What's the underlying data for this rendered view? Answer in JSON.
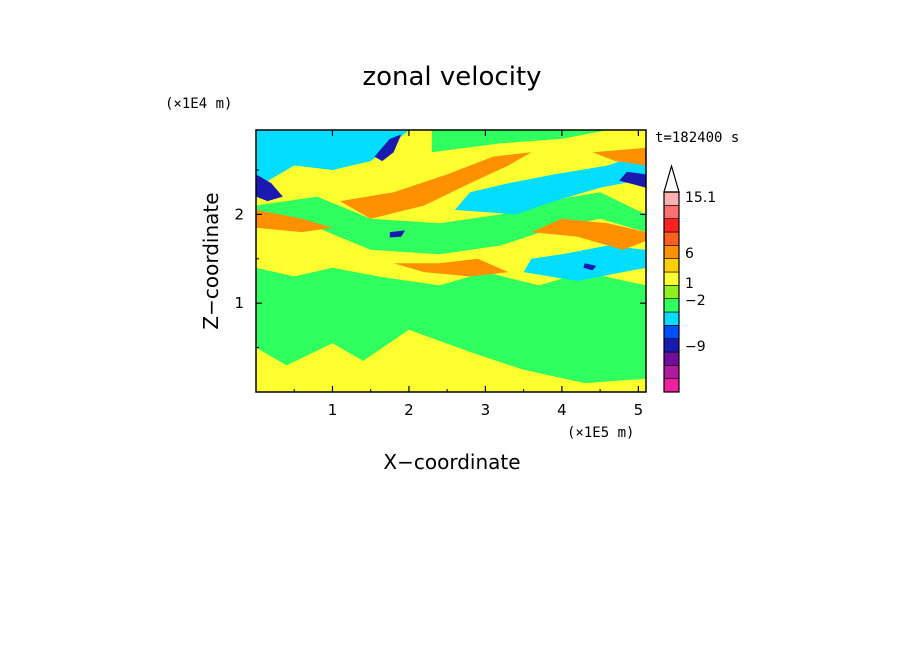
{
  "chart_data": {
    "type": "heatmap",
    "title": "zonal velocity",
    "xlabel": "X−coordinate",
    "ylabel": "Z−coordinate",
    "x_unit": "(×1E5 m)",
    "y_unit": "(×1E4 m)",
    "time_label": "t=182400 s",
    "xlim": [
      0,
      5.1
    ],
    "ylim": [
      0,
      2.95
    ],
    "x_ticks": [
      1,
      2,
      3,
      4,
      5
    ],
    "y_ticks": [
      1,
      2
    ],
    "grid": false,
    "colorbar": {
      "placement": "right",
      "tick_labels": [
        "15.1",
        "6",
        "1",
        "−2",
        "−9"
      ],
      "colors": [
        "#f020a0",
        "#b01aa0",
        "#70109a",
        "#1a1ab0",
        "#0050ff",
        "#00ddff",
        "#30ff60",
        "#90f020",
        "#ffff30",
        "#ffd000",
        "#ff9000",
        "#ff6020",
        "#ff2020",
        "#ff7070",
        "#ffb0b0"
      ]
    },
    "field_colors": {
      "dark_blue": "#1a1ab0",
      "cyan": "#00ddff",
      "green": "#30ff60",
      "yellow": "#ffff30",
      "orange": "#ff9000"
    },
    "bands": [
      {
        "color": "yellow",
        "poly": [
          [
            0,
            0
          ],
          [
            5.1,
            0
          ],
          [
            5.1,
            2.95
          ],
          [
            0,
            2.95
          ]
        ]
      },
      {
        "color": "green",
        "poly": [
          [
            0,
            0.5
          ],
          [
            0.4,
            0.3
          ],
          [
            1.0,
            0.55
          ],
          [
            1.4,
            0.35
          ],
          [
            2.0,
            0.7
          ],
          [
            2.8,
            0.45
          ],
          [
            3.5,
            0.25
          ],
          [
            4.3,
            0.1
          ],
          [
            5.1,
            0.15
          ],
          [
            5.1,
            1.2
          ],
          [
            4.3,
            1.35
          ],
          [
            3.7,
            1.2
          ],
          [
            3.0,
            1.35
          ],
          [
            2.4,
            1.2
          ],
          [
            1.6,
            1.3
          ],
          [
            1.0,
            1.4
          ],
          [
            0.5,
            1.3
          ],
          [
            0,
            1.4
          ]
        ]
      },
      {
        "color": "green",
        "poly": [
          [
            0,
            1.9
          ],
          [
            0.8,
            1.85
          ],
          [
            1.5,
            1.6
          ],
          [
            2.4,
            1.55
          ],
          [
            3.2,
            1.65
          ],
          [
            3.9,
            1.85
          ],
          [
            4.5,
            1.95
          ],
          [
            5.1,
            1.8
          ],
          [
            5.1,
            2.0
          ],
          [
            4.5,
            2.25
          ],
          [
            3.8,
            2.15
          ],
          [
            3.2,
            2.0
          ],
          [
            2.4,
            1.9
          ],
          [
            1.5,
            1.95
          ],
          [
            0.8,
            2.2
          ],
          [
            0,
            2.1
          ]
        ]
      },
      {
        "color": "cyan",
        "poly": [
          [
            0,
            2.3
          ],
          [
            0.5,
            2.55
          ],
          [
            1.0,
            2.5
          ],
          [
            1.5,
            2.6
          ],
          [
            1.8,
            2.8
          ],
          [
            2.0,
            2.95
          ],
          [
            0,
            2.95
          ]
        ]
      },
      {
        "color": "cyan",
        "poly": [
          [
            2.6,
            2.05
          ],
          [
            3.4,
            2.0
          ],
          [
            3.9,
            2.15
          ],
          [
            4.5,
            2.3
          ],
          [
            5.1,
            2.4
          ],
          [
            5.1,
            2.7
          ],
          [
            4.6,
            2.55
          ],
          [
            3.9,
            2.45
          ],
          [
            3.3,
            2.35
          ],
          [
            2.8,
            2.25
          ]
        ]
      },
      {
        "color": "cyan",
        "poly": [
          [
            3.5,
            1.35
          ],
          [
            4.2,
            1.25
          ],
          [
            4.8,
            1.35
          ],
          [
            5.1,
            1.4
          ],
          [
            5.1,
            1.6
          ],
          [
            4.6,
            1.65
          ],
          [
            4.0,
            1.55
          ],
          [
            3.6,
            1.5
          ]
        ]
      },
      {
        "color": "green",
        "poly": [
          [
            2.3,
            2.7
          ],
          [
            3.2,
            2.8
          ],
          [
            4.0,
            2.85
          ],
          [
            4.6,
            2.95
          ],
          [
            2.3,
            2.95
          ]
        ]
      },
      {
        "color": "orange",
        "poly": [
          [
            1.1,
            2.15
          ],
          [
            1.8,
            2.25
          ],
          [
            2.5,
            2.45
          ],
          [
            3.1,
            2.65
          ],
          [
            3.6,
            2.7
          ],
          [
            3.3,
            2.55
          ],
          [
            2.8,
            2.35
          ],
          [
            2.2,
            2.1
          ],
          [
            1.5,
            1.95
          ]
        ]
      },
      {
        "color": "orange",
        "poly": [
          [
            0,
            2.05
          ],
          [
            0.6,
            1.95
          ],
          [
            1.0,
            1.85
          ],
          [
            0.6,
            1.8
          ],
          [
            0,
            1.85
          ]
        ]
      },
      {
        "color": "orange",
        "poly": [
          [
            3.6,
            1.8
          ],
          [
            4.2,
            1.75
          ],
          [
            4.8,
            1.6
          ],
          [
            5.1,
            1.7
          ],
          [
            5.1,
            1.8
          ],
          [
            4.6,
            1.9
          ],
          [
            4.0,
            1.95
          ]
        ]
      },
      {
        "color": "orange",
        "poly": [
          [
            1.8,
            1.45
          ],
          [
            2.4,
            1.45
          ],
          [
            2.9,
            1.5
          ],
          [
            3.3,
            1.35
          ],
          [
            2.8,
            1.3
          ],
          [
            2.2,
            1.35
          ]
        ]
      },
      {
        "color": "orange",
        "poly": [
          [
            4.4,
            2.7
          ],
          [
            5.1,
            2.75
          ],
          [
            5.1,
            2.55
          ],
          [
            4.7,
            2.6
          ]
        ]
      },
      {
        "color": "dark_blue",
        "poly": [
          [
            0,
            2.45
          ],
          [
            0.2,
            2.35
          ],
          [
            0.35,
            2.2
          ],
          [
            0.15,
            2.15
          ],
          [
            0,
            2.2
          ]
        ]
      },
      {
        "color": "dark_blue",
        "poly": [
          [
            1.55,
            2.65
          ],
          [
            1.75,
            2.85
          ],
          [
            1.9,
            2.9
          ],
          [
            1.8,
            2.7
          ],
          [
            1.65,
            2.6
          ]
        ]
      },
      {
        "color": "dark_blue",
        "poly": [
          [
            4.75,
            2.38
          ],
          [
            5.1,
            2.3
          ],
          [
            5.1,
            2.45
          ],
          [
            4.85,
            2.48
          ]
        ]
      },
      {
        "color": "dark_blue",
        "poly": [
          [
            1.75,
            1.8
          ],
          [
            1.95,
            1.82
          ],
          [
            1.9,
            1.75
          ],
          [
            1.75,
            1.74
          ]
        ]
      },
      {
        "color": "dark_blue",
        "poly": [
          [
            4.3,
            1.45
          ],
          [
            4.45,
            1.42
          ],
          [
            4.4,
            1.37
          ],
          [
            4.28,
            1.4
          ]
        ]
      }
    ]
  }
}
